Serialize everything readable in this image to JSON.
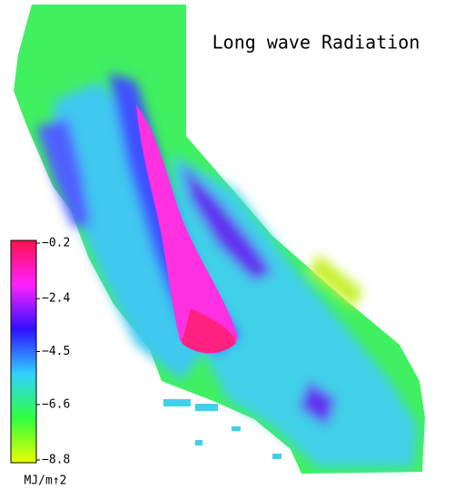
{
  "title": "Long wave Radiation",
  "colorbar": {
    "lim": [
      -8.8,
      -0.2
    ],
    "ticks": [
      {
        "value": -0.2,
        "label": "−0.2"
      },
      {
        "value": -2.4,
        "label": "−2.4"
      },
      {
        "value": -4.5,
        "label": "−4.5"
      },
      {
        "value": -6.6,
        "label": "−6.6"
      },
      {
        "value": -8.8,
        "label": "−8.8"
      }
    ],
    "colors": [
      "#ff1050",
      "#ff20ff",
      "#3010ff",
      "#30d0ff",
      "#30ff40",
      "#e8ff00"
    ],
    "unit": "MJ/m↑2"
  }
}
